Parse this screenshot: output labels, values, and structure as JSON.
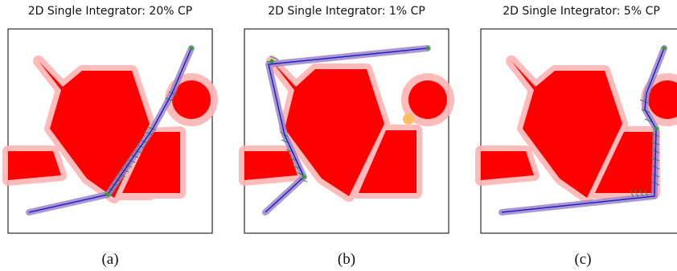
{
  "panels": [
    {
      "title": "2D Single Integrator: 20% CP",
      "caption": "(a)"
    },
    {
      "title": "2D Single Integrator: 1% CP",
      "caption": "(b)"
    },
    {
      "title": "2D Single Integrator: 5% CP",
      "caption": "(c)"
    }
  ],
  "colors": {
    "obstacle": "#ff0000",
    "inflation": "#ffb3b3",
    "path_line": "#2222cc",
    "path_tube": "#9e86c6",
    "hatch": "#2e8b57",
    "goal_marker": "#2ca02c",
    "uncertain_obstacle": "#ffbf60"
  },
  "icons": [
    "obstacle-polygon",
    "trajectory-line",
    "confidence-tube",
    "goal-marker"
  ]
}
